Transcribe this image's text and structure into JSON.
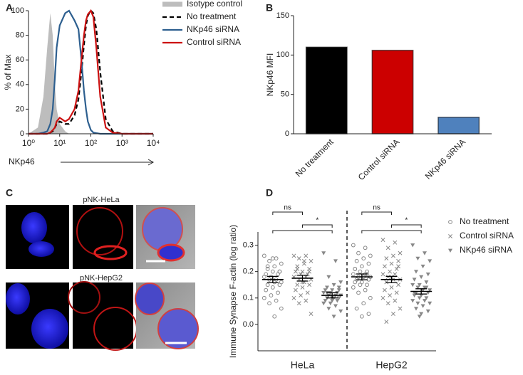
{
  "chart_data": [
    {
      "type": "line",
      "panel": "A",
      "xlabel": "NKp46",
      "ylabel": "% of Max",
      "log_x": true,
      "legend": true,
      "xlim": [
        1,
        10000
      ],
      "xticks": [
        {
          "value": 1,
          "label": "10⁰"
        },
        {
          "value": 10,
          "label": "10¹"
        },
        {
          "value": 100,
          "label": "10²"
        },
        {
          "value": 1000,
          "label": "10³"
        },
        {
          "value": 10000,
          "label": "10⁴"
        }
      ],
      "ylim": [
        0,
        100
      ],
      "yticks": [
        0,
        20,
        40,
        60,
        80,
        100
      ],
      "x": [
        1,
        2,
        3,
        4,
        5,
        6,
        7,
        8,
        10,
        15,
        20,
        30,
        40,
        50,
        60,
        70,
        80,
        100,
        120,
        150,
        200,
        300,
        500,
        1000,
        10000
      ],
      "series": [
        {
          "name": "Isotype control",
          "color": "#bdbdbd",
          "style": "area",
          "values": [
            0,
            5,
            30,
            70,
            98,
            80,
            40,
            20,
            8,
            2,
            0,
            0,
            0,
            0,
            0,
            0,
            0,
            0,
            0,
            0,
            0,
            0,
            0,
            0,
            0
          ]
        },
        {
          "name": "No treatment",
          "color": "#000000",
          "style": "dashed",
          "values": [
            0,
            0,
            0,
            0,
            1,
            2,
            5,
            8,
            10,
            8,
            8,
            15,
            28,
            50,
            72,
            88,
            96,
            100,
            98,
            85,
            50,
            12,
            2,
            0,
            0
          ]
        },
        {
          "name": "NKp46 siRNA",
          "color": "#2d5f8f",
          "style": "solid",
          "values": [
            0,
            0,
            1,
            2,
            8,
            20,
            45,
            70,
            88,
            98,
            100,
            92,
            85,
            60,
            35,
            20,
            10,
            3,
            1,
            0.5,
            0,
            0,
            0,
            0,
            0
          ]
        },
        {
          "name": "Control siRNA",
          "color": "#cc1111",
          "style": "solid",
          "values": [
            0,
            0,
            0,
            0,
            1,
            3,
            5,
            10,
            13,
            10,
            12,
            20,
            35,
            60,
            80,
            92,
            97,
            100,
            95,
            70,
            30,
            5,
            1,
            0,
            0
          ]
        }
      ]
    },
    {
      "type": "bar",
      "panel": "B",
      "ylabel": "NKp46 MFI",
      "categories": [
        "No treatment",
        "Control siRNA",
        "NKp46 siRNA"
      ],
      "values": [
        110,
        106,
        21
      ],
      "colors": [
        "#000000",
        "#cc0000",
        "#4f81bd"
      ],
      "ylim": [
        0,
        150
      ],
      "yticks": [
        0,
        50,
        100,
        150
      ]
    },
    {
      "type": "dot",
      "panel": "D",
      "ylabel": "Immune Synapse F-actin (log ratio)",
      "divider": true,
      "legend": true,
      "categories": [
        "HeLa",
        "HepG2"
      ],
      "ylim": [
        -0.1,
        0.35
      ],
      "yticks": [
        {
          "value": 0,
          "label": "0.0"
        },
        0.1,
        0.2,
        0.3
      ],
      "series": [
        {
          "name": "No treatment",
          "marker": "circle",
          "color": "#888888",
          "mean": [
            0.17,
            0.18
          ],
          "sem": [
            0.012,
            0.011
          ],
          "values": [
            [
              0.26,
              0.25,
              0.24,
              0.23,
              0.22,
              0.21,
              0.2,
              0.2,
              0.19,
              0.19,
              0.18,
              0.18,
              0.17,
              0.17,
              0.16,
              0.16,
              0.15,
              0.15,
              0.14,
              0.13,
              0.12,
              0.11,
              0.1,
              0.09,
              0.08,
              0.06,
              0.03,
              0.22,
              0.2,
              0.25
            ],
            [
              0.3,
              0.29,
              0.27,
              0.26,
              0.25,
              0.24,
              0.23,
              0.22,
              0.21,
              0.2,
              0.2,
              0.19,
              0.19,
              0.18,
              0.18,
              0.18,
              0.17,
              0.17,
              0.16,
              0.16,
              0.15,
              0.15,
              0.14,
              0.13,
              0.12,
              0.1,
              0.08,
              0.06,
              0.04,
              0.03,
              0.21,
              0.19
            ]
          ]
        },
        {
          "name": "Control siRNA",
          "marker": "x",
          "color": "#888888",
          "mean": [
            0.175,
            0.17
          ],
          "sem": [
            0.011,
            0.012
          ],
          "values": [
            [
              0.26,
              0.26,
              0.25,
              0.24,
              0.23,
              0.22,
              0.21,
              0.2,
              0.2,
              0.19,
              0.19,
              0.18,
              0.18,
              0.17,
              0.17,
              0.16,
              0.15,
              0.15,
              0.14,
              0.13,
              0.12,
              0.11,
              0.1,
              0.09,
              0.08,
              0.04,
              0.24,
              0.21,
              0.2,
              0.16
            ],
            [
              0.32,
              0.31,
              0.29,
              0.27,
              0.26,
              0.25,
              0.24,
              0.23,
              0.22,
              0.21,
              0.2,
              0.19,
              0.19,
              0.18,
              0.17,
              0.17,
              0.16,
              0.15,
              0.14,
              0.13,
              0.12,
              0.11,
              0.1,
              0.09,
              0.08,
              0.06,
              0.04,
              0.01,
              0.22,
              0.18
            ]
          ]
        },
        {
          "name": "NKp46 siRNA",
          "marker": "triangle",
          "color": "#888888",
          "mean": [
            0.11,
            0.125
          ],
          "sem": [
            0.01,
            0.01
          ],
          "values": [
            [
              0.27,
              0.24,
              0.18,
              0.16,
              0.15,
              0.14,
              0.14,
              0.13,
              0.13,
              0.12,
              0.12,
              0.12,
              0.11,
              0.11,
              0.11,
              0.1,
              0.1,
              0.1,
              0.09,
              0.09,
              0.09,
              0.08,
              0.08,
              0.07,
              0.06,
              0.05,
              0.03,
              0.12,
              0.13,
              0.1
            ],
            [
              0.3,
              0.27,
              0.25,
              0.24,
              0.22,
              0.2,
              0.19,
              0.18,
              0.17,
              0.16,
              0.15,
              0.15,
              0.14,
              0.14,
              0.13,
              0.13,
              0.12,
              0.12,
              0.11,
              0.11,
              0.1,
              0.1,
              0.09,
              0.09,
              0.08,
              0.08,
              0.07,
              0.06,
              0.05,
              0.04,
              0.12,
              0.14,
              0.03
            ]
          ]
        }
      ],
      "annotations": [
        {
          "text": "ns",
          "category": 0,
          "span": [
            0,
            1
          ]
        },
        {
          "text": "*",
          "category": 0,
          "span": [
            1,
            2
          ]
        },
        {
          "category": 0,
          "span": [
            0,
            2
          ]
        },
        {
          "text": "ns",
          "category": 1,
          "span": [
            0,
            1
          ]
        },
        {
          "text": "*",
          "category": 1,
          "span": [
            1,
            2
          ]
        },
        {
          "category": 1,
          "span": [
            0,
            2
          ]
        }
      ]
    }
  ],
  "panel_c": {
    "panel": "C",
    "titles": [
      "pNK-HeLa",
      "pNK-HepG2"
    ]
  }
}
